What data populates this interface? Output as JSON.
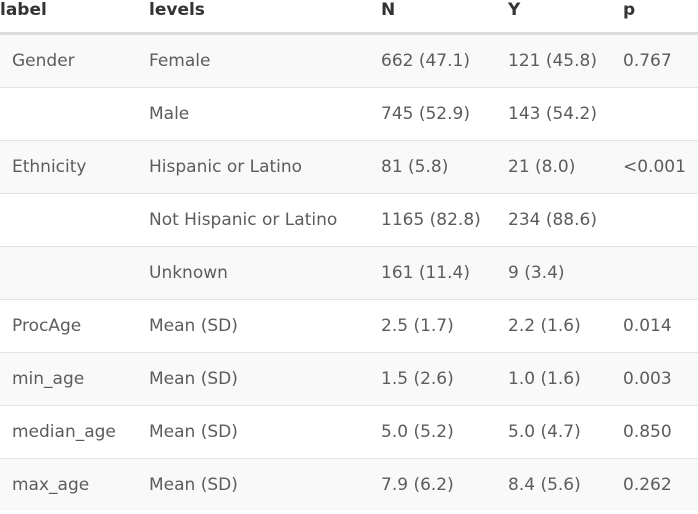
{
  "table": {
    "headers": [
      "label",
      "levels",
      "N",
      "Y",
      "p"
    ],
    "rows": [
      {
        "label": "Gender",
        "level": "Female",
        "n": "662 (47.1)",
        "y": "121 (45.8)",
        "p": "0.767"
      },
      {
        "label": "",
        "level": "Male",
        "n": "745 (52.9)",
        "y": "143 (54.2)",
        "p": ""
      },
      {
        "label": "Ethnicity",
        "level": "Hispanic or Latino",
        "n": "81 (5.8)",
        "y": "21 (8.0)",
        "p": "<0.001"
      },
      {
        "label": "",
        "level": "Not Hispanic or Latino",
        "n": "1165 (82.8)",
        "y": "234 (88.6)",
        "p": ""
      },
      {
        "label": "",
        "level": "Unknown",
        "n": "161 (11.4)",
        "y": "9 (3.4)",
        "p": ""
      },
      {
        "label": "ProcAge",
        "level": "Mean (SD)",
        "n": "2.5 (1.7)",
        "y": "2.2 (1.6)",
        "p": "0.014"
      },
      {
        "label": "min_age",
        "level": "Mean (SD)",
        "n": "1.5 (2.6)",
        "y": "1.0 (1.6)",
        "p": "0.003"
      },
      {
        "label": "median_age",
        "level": "Mean (SD)",
        "n": "5.0 (5.2)",
        "y": "5.0 (4.7)",
        "p": "0.850"
      },
      {
        "label": "max_age",
        "level": "Mean (SD)",
        "n": "7.9 (6.2)",
        "y": "8.4 (5.6)",
        "p": "0.262"
      }
    ]
  }
}
